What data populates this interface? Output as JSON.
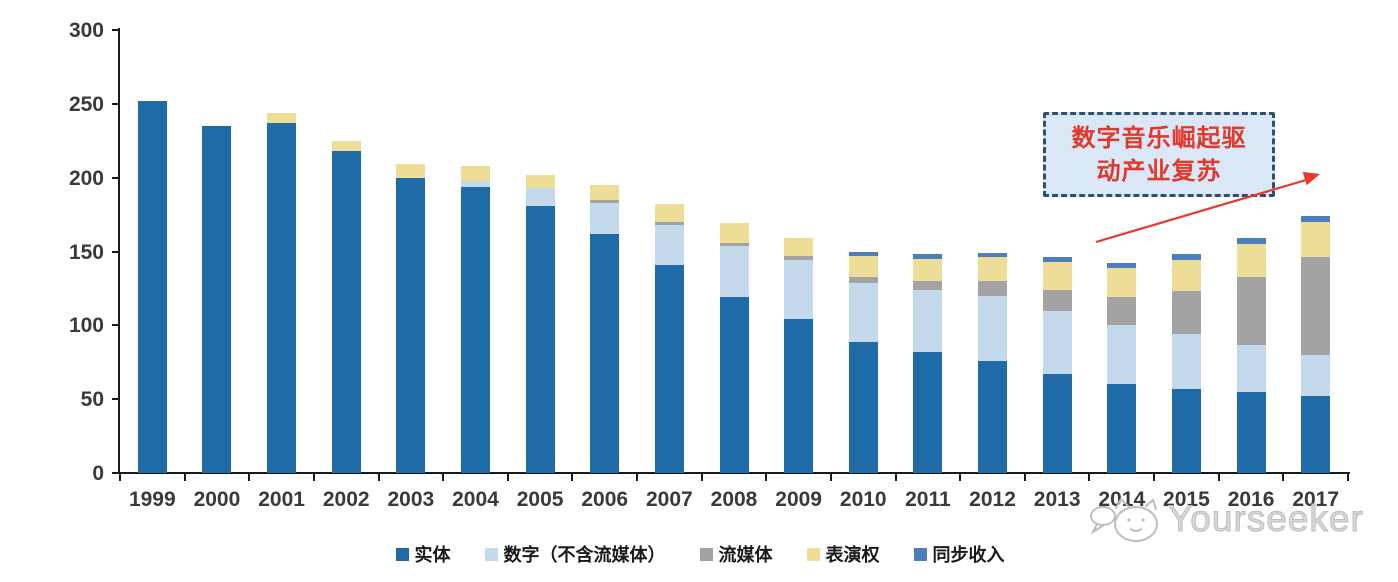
{
  "chart_data": {
    "type": "bar",
    "subtype": "stacked",
    "title": "",
    "categories": [
      "1999",
      "2000",
      "2001",
      "2002",
      "2003",
      "2004",
      "2005",
      "2006",
      "2007",
      "2008",
      "2009",
      "2010",
      "2011",
      "2012",
      "2013",
      "2014",
      "2015",
      "2016",
      "2017"
    ],
    "series": [
      {
        "name": "实体",
        "color": "#1f6ba8",
        "values": [
          252,
          235,
          237,
          218,
          200,
          194,
          181,
          162,
          141,
          119,
          104,
          89,
          82,
          76,
          67,
          60,
          57,
          55,
          52
        ]
      },
      {
        "name": "数字（不含流媒体）",
        "color": "#c5d9ed",
        "values": [
          0,
          0,
          0,
          0,
          0,
          4,
          12,
          21,
          27,
          35,
          40,
          40,
          42,
          44,
          43,
          40,
          37,
          32,
          28
        ]
      },
      {
        "name": "流媒体",
        "color": "#a3a3a3",
        "values": [
          0,
          0,
          0,
          0,
          0,
          0,
          0,
          2,
          2,
          2,
          3,
          4,
          6,
          10,
          14,
          19,
          29,
          46,
          66
        ]
      },
      {
        "name": "表演权",
        "color": "#eedd96",
        "values": [
          0,
          0,
          7,
          7,
          9,
          10,
          9,
          10,
          12,
          13,
          12,
          14,
          15,
          16,
          19,
          20,
          21,
          22,
          24
        ]
      },
      {
        "name": "同步收入",
        "color": "#4a7ebc",
        "values": [
          0,
          0,
          0,
          0,
          0,
          0,
          0,
          0,
          0,
          0,
          0,
          3,
          3,
          3,
          3,
          3,
          4,
          4,
          4
        ]
      }
    ],
    "ylim": [
      0,
      300
    ],
    "yticks": [
      0,
      50,
      100,
      150,
      200,
      250,
      300
    ],
    "xlabel": "",
    "ylabel": "",
    "grid": false,
    "legend_position": "bottom"
  },
  "annotation": {
    "line1": "数字音乐崛起驱",
    "line2": "动产业复苏",
    "text_color": "#e2372b",
    "box_fill": "#d9e7f6",
    "box_border": "#31506e",
    "arrow_color": "#e8392e"
  },
  "watermark": {
    "text": "Yourseeker",
    "color": "#bdbdbd"
  },
  "axis": {
    "line_color": "#1a1a1a",
    "label_color": "#3a3a3a"
  }
}
